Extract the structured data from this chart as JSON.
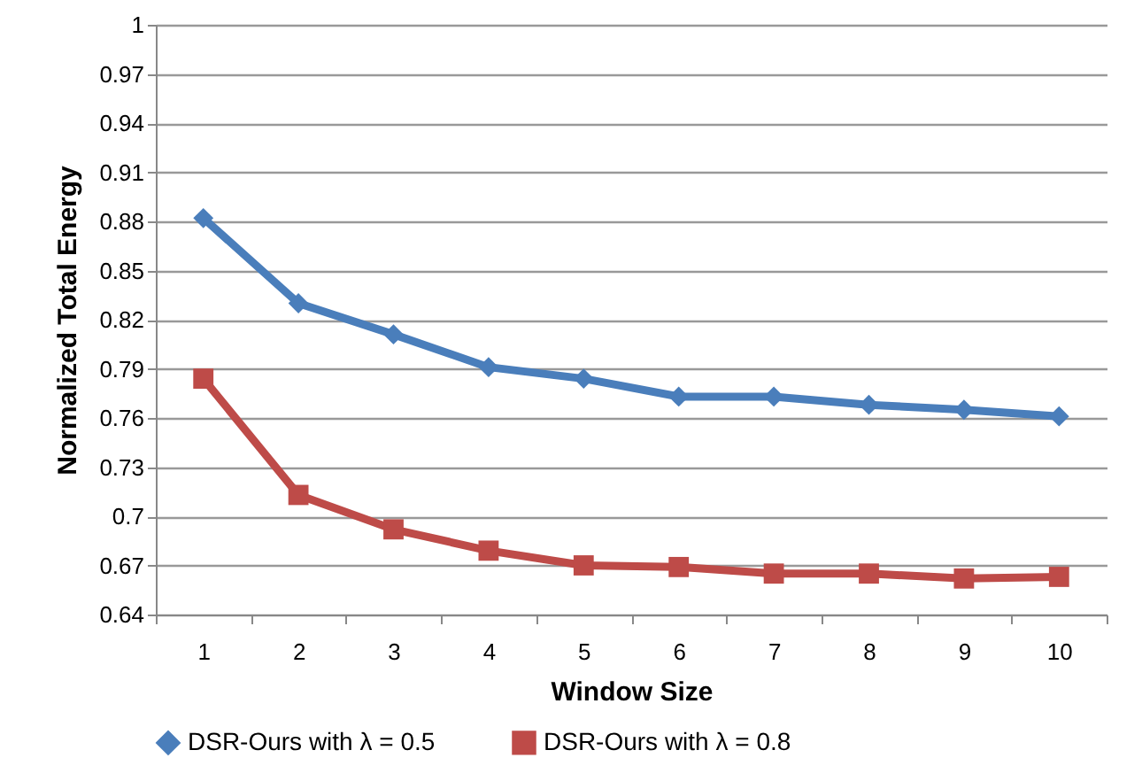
{
  "chart_data": {
    "type": "line",
    "xlabel": "Window Size",
    "ylabel": "Normalized Total Energy",
    "categories": [
      "1",
      "2",
      "3",
      "4",
      "5",
      "6",
      "7",
      "8",
      "9",
      "10"
    ],
    "series": [
      {
        "name": "DSR-Ours with λ = 0.5",
        "color": "#4a7ebb",
        "marker": "diamond",
        "values": [
          0.882,
          0.83,
          0.811,
          0.791,
          0.784,
          0.773,
          0.773,
          0.768,
          0.765,
          0.761
        ]
      },
      {
        "name": "DSR-Ours with λ = 0.8",
        "color": "#be4b48",
        "marker": "square",
        "values": [
          0.784,
          0.713,
          0.692,
          0.679,
          0.67,
          0.669,
          0.665,
          0.665,
          0.662,
          0.663
        ]
      }
    ],
    "ylim": [
      0.64,
      1
    ],
    "yticks": [
      0.64,
      0.67,
      0.7,
      0.73,
      0.76,
      0.79,
      0.82,
      0.85,
      0.88,
      0.91,
      0.94,
      0.97,
      1
    ],
    "grid": "y",
    "legend": "bottom",
    "line_style": "solid"
  }
}
